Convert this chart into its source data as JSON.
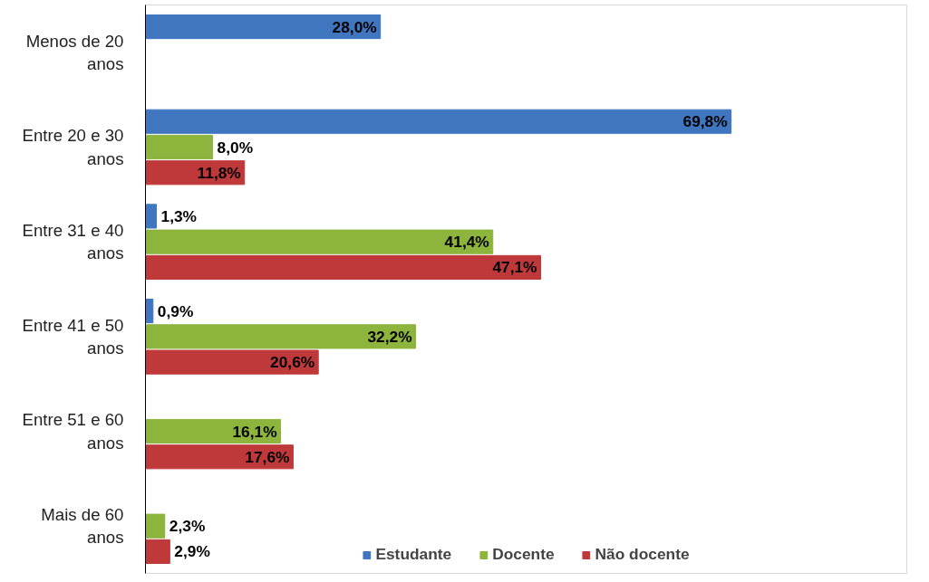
{
  "chart_data": {
    "type": "bar",
    "orientation": "horizontal",
    "relative": false,
    "categories": [
      "Menos de 20 anos",
      "Entre 20 e 30 anos",
      "Entre 31 e 40 anos",
      "Entre 41 e 50 anos",
      "Entre 51 e 60 anos",
      "Mais de 60 anos"
    ],
    "series": [
      {
        "name": "Estudante",
        "color": "#4076c0",
        "values": [
          28.0,
          69.8,
          1.3,
          0.9,
          null,
          null
        ],
        "value_labels": [
          "28,0%",
          "69,8%",
          "1,3%",
          "0,9%",
          null,
          null
        ]
      },
      {
        "name": "Docente",
        "color": "#8db43c",
        "values": [
          null,
          8.0,
          41.4,
          32.2,
          16.1,
          2.3
        ],
        "value_labels": [
          null,
          "8,0%",
          "41,4%",
          "32,2%",
          "16,1%",
          "2,3%"
        ]
      },
      {
        "name": "Não docente",
        "color": "#c0393a",
        "values": [
          null,
          11.8,
          47.1,
          20.6,
          17.6,
          2.9
        ],
        "value_labels": [
          null,
          "11,8%",
          "47,1%",
          "20,6%",
          "17,6%",
          "2,9%"
        ]
      }
    ],
    "legend": "bottom"
  }
}
